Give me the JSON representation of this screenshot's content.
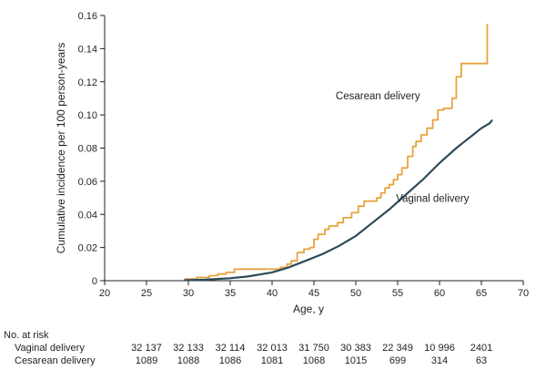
{
  "chart_data": {
    "type": "line",
    "xlabel": "Age, y",
    "ylabel": "Cumulative incidence per 100 person-years",
    "xlim": [
      20,
      70
    ],
    "ylim": [
      0,
      0.16
    ],
    "x_ticks": [
      "20",
      "25",
      "30",
      "35",
      "40",
      "45",
      "50",
      "55",
      "60",
      "65",
      "70"
    ],
    "y_ticks": [
      "0",
      "0.02",
      "0.04",
      "0.06",
      "0.08",
      "0.10",
      "0.12",
      "0.14",
      "0.16"
    ],
    "series": [
      {
        "name": "Cesarean delivery",
        "color": "#e8a33d",
        "step": true,
        "x": [
          29.5,
          31,
          32.5,
          33.5,
          34.5,
          35.5,
          37.5,
          39.5,
          41,
          41.8,
          42.3,
          43,
          43.8,
          44.5,
          45,
          45.5,
          46.3,
          46.8,
          47.8,
          48.5,
          49.5,
          50.3,
          51,
          51.8,
          52.5,
          53,
          53.5,
          54,
          54.5,
          55,
          55.5,
          56.2,
          56.8,
          57.2,
          57.8,
          58.5,
          59.2,
          59.8,
          60.5,
          61.5,
          62,
          62.6,
          64,
          65.5,
          65.7
        ],
        "y": [
          0.001,
          0.002,
          0.003,
          0.004,
          0.005,
          0.007,
          0.007,
          0.007,
          0.008,
          0.01,
          0.012,
          0.017,
          0.019,
          0.02,
          0.025,
          0.028,
          0.031,
          0.033,
          0.035,
          0.038,
          0.041,
          0.045,
          0.048,
          0.048,
          0.05,
          0.053,
          0.056,
          0.058,
          0.061,
          0.064,
          0.068,
          0.075,
          0.081,
          0.084,
          0.088,
          0.092,
          0.097,
          0.103,
          0.104,
          0.11,
          0.123,
          0.131,
          0.131,
          0.131,
          0.155
        ]
      },
      {
        "name": "Vaginal delivery",
        "color": "#2d4b5a",
        "step": false,
        "x": [
          29.5,
          32,
          35,
          37,
          40,
          42,
          44,
          46,
          48,
          50,
          52,
          54,
          56,
          58,
          60,
          62,
          63,
          64,
          65,
          66,
          66.3
        ],
        "y": [
          0.0003,
          0.0006,
          0.0015,
          0.0025,
          0.005,
          0.008,
          0.012,
          0.016,
          0.021,
          0.027,
          0.035,
          0.043,
          0.052,
          0.061,
          0.071,
          0.08,
          0.084,
          0.088,
          0.092,
          0.095,
          0.097
        ]
      }
    ],
    "annotations": [
      {
        "text": "Cesarean delivery",
        "series": 0
      },
      {
        "text": "Vaginal delivery",
        "series": 1
      }
    ],
    "risk_table": {
      "title": "No. at risk",
      "ages": [
        25,
        30,
        35,
        40,
        45,
        50,
        55,
        60,
        65
      ],
      "rows": [
        {
          "label": "Vaginal delivery",
          "values": [
            "32 137",
            "32 133",
            "32 114",
            "32 013",
            "31 750",
            "30 383",
            "22 349",
            "10 996",
            "2401"
          ]
        },
        {
          "label": "Cesarean delivery",
          "values": [
            "1089",
            "1088",
            "1086",
            "1081",
            "1068",
            "1015",
            "699",
            "314",
            "63"
          ]
        }
      ]
    }
  }
}
